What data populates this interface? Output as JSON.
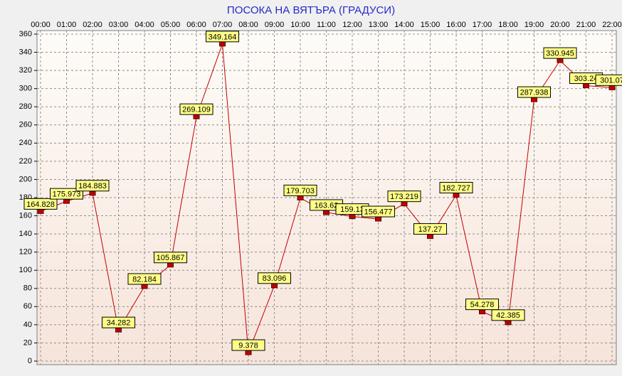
{
  "chart_data": {
    "type": "line",
    "title": "ПОСОКА НА ВЯТЪРА    (ГРАДУСИ)",
    "categories": [
      "00:00",
      "01:00",
      "02:00",
      "03:00",
      "04:00",
      "05:00",
      "06:00",
      "07:00",
      "08:00",
      "09:00",
      "10:00",
      "11:00",
      "12:00",
      "13:00",
      "14:00",
      "15:00",
      "16:00",
      "17:00",
      "18:00",
      "19:00",
      "20:00",
      "21:00",
      "22:00"
    ],
    "series": [
      {
        "color": "#c00000",
        "values": [
          164.828,
          175.973,
          184.883,
          34.282,
          82.184,
          105.867,
          269.109,
          349.164,
          9.378,
          83.096,
          179.703,
          163.62,
          159.13,
          156.477,
          173.219,
          137.27,
          182.727,
          54.278,
          42.385,
          287.938,
          330.945,
          303.24,
          301.07
        ]
      }
    ],
    "ylim": [
      0,
      360
    ],
    "yticks": [
      0,
      20,
      40,
      60,
      80,
      100,
      120,
      140,
      160,
      180,
      200,
      220,
      240,
      260,
      280,
      300,
      320,
      340,
      360
    ],
    "grid": true,
    "title_color": "#2828c8",
    "label_fill": "#ffff88"
  }
}
